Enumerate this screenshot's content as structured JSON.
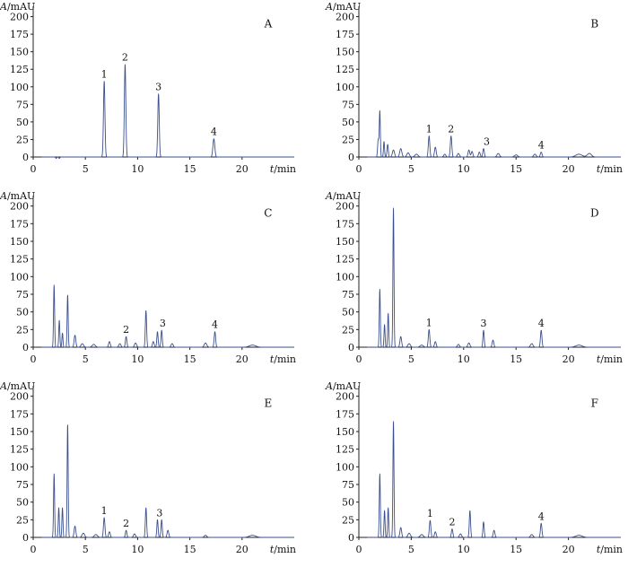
{
  "chart_data": [
    {
      "type": "line",
      "panel_label": "A",
      "ylabel_var": "A",
      "ylabel_unit": "/mAU",
      "xlabel_var": "t",
      "xlabel_unit": "/min",
      "xlim": [
        0,
        25
      ],
      "ylim": [
        0,
        225
      ],
      "x_ticks": [
        0,
        5,
        10,
        15,
        20
      ],
      "y_ticks": [
        0,
        25,
        50,
        75,
        100,
        125,
        150,
        175,
        200
      ],
      "peaks": [
        {
          "x": 2.2,
          "y": -2,
          "w": 0.05
        },
        {
          "x": 2.5,
          "y": -2,
          "w": 0.05
        },
        {
          "x": 6.8,
          "y": 108,
          "w": 0.07
        },
        {
          "x": 8.8,
          "y": 132,
          "w": 0.07
        },
        {
          "x": 12.0,
          "y": 90,
          "w": 0.07
        },
        {
          "x": 17.3,
          "y": 26,
          "w": 0.09
        }
      ],
      "peak_labels": [
        {
          "text": "1",
          "x": 6.8,
          "y": 108
        },
        {
          "text": "2",
          "x": 8.8,
          "y": 132
        },
        {
          "text": "3",
          "x": 12.0,
          "y": 90
        },
        {
          "text": "4",
          "x": 17.3,
          "y": 26
        }
      ]
    },
    {
      "type": "line",
      "panel_label": "B",
      "ylabel_var": "A",
      "ylabel_unit": "/mAU",
      "xlabel_var": "t",
      "xlabel_unit": "/min",
      "xlim": [
        0,
        25
      ],
      "ylim": [
        0,
        225
      ],
      "x_ticks": [
        0,
        5,
        10,
        15,
        20
      ],
      "y_ticks": [
        0,
        25,
        50,
        75,
        100,
        125,
        150,
        175,
        200
      ],
      "peaks": [
        {
          "x": 1.85,
          "y": 25,
          "w": 0.06
        },
        {
          "x": 2.0,
          "y": 65,
          "w": 0.05
        },
        {
          "x": 2.4,
          "y": 22,
          "w": 0.05
        },
        {
          "x": 2.75,
          "y": 18,
          "w": 0.06
        },
        {
          "x": 3.3,
          "y": 10,
          "w": 0.1
        },
        {
          "x": 4.0,
          "y": 12,
          "w": 0.1
        },
        {
          "x": 4.7,
          "y": 6,
          "w": 0.12
        },
        {
          "x": 5.5,
          "y": 4,
          "w": 0.15
        },
        {
          "x": 6.7,
          "y": 30,
          "w": 0.07
        },
        {
          "x": 7.3,
          "y": 14,
          "w": 0.08
        },
        {
          "x": 8.2,
          "y": 4,
          "w": 0.1
        },
        {
          "x": 8.8,
          "y": 30,
          "w": 0.07
        },
        {
          "x": 9.5,
          "y": 5,
          "w": 0.1
        },
        {
          "x": 10.5,
          "y": 10,
          "w": 0.08
        },
        {
          "x": 10.8,
          "y": 8,
          "w": 0.08
        },
        {
          "x": 11.5,
          "y": 7,
          "w": 0.08
        },
        {
          "x": 11.9,
          "y": 12,
          "w": 0.07
        },
        {
          "x": 13.3,
          "y": 5,
          "w": 0.12
        },
        {
          "x": 15.0,
          "y": 3,
          "w": 0.15
        },
        {
          "x": 16.8,
          "y": 4,
          "w": 0.12
        },
        {
          "x": 17.4,
          "y": 7,
          "w": 0.08
        },
        {
          "x": 21.0,
          "y": 4,
          "w": 0.3
        },
        {
          "x": 22.0,
          "y": 5,
          "w": 0.2
        }
      ],
      "peak_labels": [
        {
          "text": "1",
          "x": 6.7,
          "y": 30
        },
        {
          "text": "2",
          "x": 8.8,
          "y": 30
        },
        {
          "text": "3",
          "x": 12.2,
          "y": 12
        },
        {
          "text": "4",
          "x": 17.4,
          "y": 7
        }
      ]
    },
    {
      "type": "line",
      "panel_label": "C",
      "ylabel_var": "A",
      "ylabel_unit": "/mAU",
      "xlabel_var": "t",
      "xlabel_unit": "/min",
      "xlim": [
        0,
        25
      ],
      "ylim": [
        0,
        225
      ],
      "x_ticks": [
        0,
        5,
        10,
        15,
        20
      ],
      "y_ticks": [
        0,
        25,
        50,
        75,
        100,
        125,
        150,
        175,
        200
      ],
      "peaks": [
        {
          "x": 2.0,
          "y": 88,
          "w": 0.05
        },
        {
          "x": 2.5,
          "y": 38,
          "w": 0.05
        },
        {
          "x": 2.8,
          "y": 20,
          "w": 0.05
        },
        {
          "x": 3.3,
          "y": 74,
          "w": 0.05
        },
        {
          "x": 4.0,
          "y": 17,
          "w": 0.08
        },
        {
          "x": 4.7,
          "y": 5,
          "w": 0.12
        },
        {
          "x": 5.8,
          "y": 4,
          "w": 0.15
        },
        {
          "x": 7.3,
          "y": 8,
          "w": 0.08
        },
        {
          "x": 8.3,
          "y": 5,
          "w": 0.1
        },
        {
          "x": 8.9,
          "y": 15,
          "w": 0.07
        },
        {
          "x": 9.8,
          "y": 6,
          "w": 0.1
        },
        {
          "x": 10.8,
          "y": 52,
          "w": 0.06
        },
        {
          "x": 11.5,
          "y": 8,
          "w": 0.08
        },
        {
          "x": 11.9,
          "y": 22,
          "w": 0.06
        },
        {
          "x": 12.3,
          "y": 24,
          "w": 0.06
        },
        {
          "x": 13.3,
          "y": 5,
          "w": 0.1
        },
        {
          "x": 16.5,
          "y": 6,
          "w": 0.12
        },
        {
          "x": 17.4,
          "y": 22,
          "w": 0.07
        },
        {
          "x": 21.0,
          "y": 3,
          "w": 0.3
        }
      ],
      "peak_labels": [
        {
          "text": "2",
          "x": 8.9,
          "y": 15
        },
        {
          "text": "3",
          "x": 12.4,
          "y": 24
        },
        {
          "text": "4",
          "x": 17.4,
          "y": 22
        }
      ]
    },
    {
      "type": "line",
      "panel_label": "D",
      "ylabel_var": "A",
      "ylabel_unit": "/mAU",
      "xlabel_var": "t",
      "xlabel_unit": "/min",
      "xlim": [
        0,
        25
      ],
      "ylim": [
        0,
        225
      ],
      "x_ticks": [
        0,
        5,
        10,
        15,
        20
      ],
      "y_ticks": [
        0,
        25,
        50,
        75,
        100,
        125,
        150,
        175,
        200
      ],
      "peaks": [
        {
          "x": 2.0,
          "y": 82,
          "w": 0.05
        },
        {
          "x": 2.45,
          "y": 32,
          "w": 0.05
        },
        {
          "x": 2.8,
          "y": 48,
          "w": 0.05
        },
        {
          "x": 3.3,
          "y": 198,
          "w": 0.05
        },
        {
          "x": 4.0,
          "y": 15,
          "w": 0.08
        },
        {
          "x": 4.8,
          "y": 5,
          "w": 0.12
        },
        {
          "x": 6.0,
          "y": 3,
          "w": 0.15
        },
        {
          "x": 6.7,
          "y": 25,
          "w": 0.07
        },
        {
          "x": 7.3,
          "y": 8,
          "w": 0.08
        },
        {
          "x": 9.5,
          "y": 4,
          "w": 0.1
        },
        {
          "x": 10.5,
          "y": 6,
          "w": 0.1
        },
        {
          "x": 11.9,
          "y": 24,
          "w": 0.06
        },
        {
          "x": 12.8,
          "y": 10,
          "w": 0.08
        },
        {
          "x": 16.5,
          "y": 5,
          "w": 0.12
        },
        {
          "x": 17.4,
          "y": 24,
          "w": 0.07
        },
        {
          "x": 21.0,
          "y": 3,
          "w": 0.3
        }
      ],
      "peak_labels": [
        {
          "text": "1",
          "x": 6.7,
          "y": 25
        },
        {
          "text": "3",
          "x": 11.9,
          "y": 24
        },
        {
          "text": "4",
          "x": 17.4,
          "y": 24
        }
      ]
    },
    {
      "type": "line",
      "panel_label": "E",
      "ylabel_var": "A",
      "ylabel_unit": "/mAU",
      "xlabel_var": "t",
      "xlabel_unit": "/min",
      "xlim": [
        0,
        25
      ],
      "ylim": [
        0,
        225
      ],
      "x_ticks": [
        0,
        5,
        10,
        15,
        20
      ],
      "y_ticks": [
        0,
        25,
        50,
        75,
        100,
        125,
        150,
        175,
        200
      ],
      "peaks": [
        {
          "x": 2.0,
          "y": 90,
          "w": 0.05
        },
        {
          "x": 2.45,
          "y": 42,
          "w": 0.05
        },
        {
          "x": 2.8,
          "y": 42,
          "w": 0.05
        },
        {
          "x": 3.3,
          "y": 160,
          "w": 0.05
        },
        {
          "x": 4.0,
          "y": 16,
          "w": 0.08
        },
        {
          "x": 4.8,
          "y": 6,
          "w": 0.12
        },
        {
          "x": 6.0,
          "y": 4,
          "w": 0.15
        },
        {
          "x": 6.8,
          "y": 28,
          "w": 0.07
        },
        {
          "x": 7.3,
          "y": 8,
          "w": 0.08
        },
        {
          "x": 8.9,
          "y": 10,
          "w": 0.07
        },
        {
          "x": 9.7,
          "y": 5,
          "w": 0.1
        },
        {
          "x": 10.8,
          "y": 42,
          "w": 0.06
        },
        {
          "x": 11.9,
          "y": 25,
          "w": 0.06
        },
        {
          "x": 12.3,
          "y": 25,
          "w": 0.06
        },
        {
          "x": 12.9,
          "y": 10,
          "w": 0.08
        },
        {
          "x": 16.5,
          "y": 3,
          "w": 0.12
        },
        {
          "x": 21.0,
          "y": 3,
          "w": 0.3
        }
      ],
      "peak_labels": [
        {
          "text": "1",
          "x": 6.8,
          "y": 28
        },
        {
          "text": "2",
          "x": 8.9,
          "y": 10
        },
        {
          "text": "3",
          "x": 12.1,
          "y": 25
        }
      ]
    },
    {
      "type": "line",
      "panel_label": "F",
      "ylabel_var": "A",
      "ylabel_unit": "/mAU",
      "xlabel_var": "t",
      "xlabel_unit": "/min",
      "xlim": [
        0,
        25
      ],
      "ylim": [
        0,
        225
      ],
      "x_ticks": [
        0,
        5,
        10,
        15,
        20
      ],
      "y_ticks": [
        0,
        25,
        50,
        75,
        100,
        125,
        150,
        175,
        200
      ],
      "peaks": [
        {
          "x": 2.0,
          "y": 90,
          "w": 0.05
        },
        {
          "x": 2.45,
          "y": 38,
          "w": 0.05
        },
        {
          "x": 2.8,
          "y": 42,
          "w": 0.05
        },
        {
          "x": 3.3,
          "y": 165,
          "w": 0.05
        },
        {
          "x": 4.0,
          "y": 14,
          "w": 0.08
        },
        {
          "x": 4.8,
          "y": 6,
          "w": 0.12
        },
        {
          "x": 6.0,
          "y": 4,
          "w": 0.15
        },
        {
          "x": 6.8,
          "y": 24,
          "w": 0.07
        },
        {
          "x": 7.3,
          "y": 8,
          "w": 0.08
        },
        {
          "x": 8.9,
          "y": 12,
          "w": 0.07
        },
        {
          "x": 9.7,
          "y": 5,
          "w": 0.1
        },
        {
          "x": 10.6,
          "y": 38,
          "w": 0.06
        },
        {
          "x": 11.9,
          "y": 22,
          "w": 0.06
        },
        {
          "x": 12.9,
          "y": 10,
          "w": 0.08
        },
        {
          "x": 16.5,
          "y": 4,
          "w": 0.12
        },
        {
          "x": 17.4,
          "y": 20,
          "w": 0.07
        },
        {
          "x": 21.0,
          "y": 3,
          "w": 0.3
        }
      ],
      "peak_labels": [
        {
          "text": "1",
          "x": 6.8,
          "y": 24
        },
        {
          "text": "2",
          "x": 8.9,
          "y": 12
        },
        {
          "text": "4",
          "x": 17.4,
          "y": 20
        }
      ]
    }
  ]
}
